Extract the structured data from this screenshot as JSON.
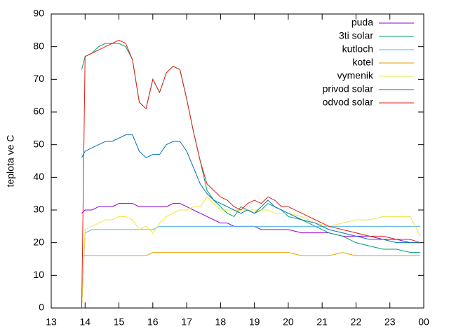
{
  "chart_data": {
    "type": "line",
    "ylabel": "teplota ve C",
    "x": [
      13.9,
      14.0,
      14.2,
      14.4,
      14.6,
      14.8,
      15.0,
      15.2,
      15.4,
      15.6,
      15.8,
      16.0,
      16.2,
      16.4,
      16.6,
      16.8,
      17.0,
      17.2,
      17.4,
      17.6,
      17.8,
      18.0,
      18.2,
      18.4,
      18.6,
      18.8,
      19.0,
      19.2,
      19.4,
      19.6,
      19.8,
      20.0,
      20.4,
      20.8,
      21.2,
      21.6,
      22.0,
      22.4,
      22.8,
      23.2,
      23.6,
      23.9
    ],
    "xlim": [
      13,
      24
    ],
    "xticks": [
      13,
      14,
      15,
      16,
      17,
      18,
      19,
      20,
      21,
      22,
      23,
      {
        "value": 24,
        "label": "00"
      }
    ],
    "ylim": [
      0,
      90
    ],
    "yticks": [
      0,
      10,
      20,
      30,
      40,
      50,
      60,
      70,
      80,
      90
    ],
    "legend": "top-right",
    "series": [
      {
        "name": "puda",
        "color": "#9400d3",
        "values": [
          29,
          30,
          30,
          31,
          31,
          31,
          32,
          32,
          32,
          31,
          31,
          31,
          31,
          31,
          32,
          32,
          31,
          30,
          29,
          28,
          27,
          26,
          26,
          25,
          25,
          25,
          25,
          24,
          24,
          24,
          24,
          24,
          23,
          23,
          23,
          22,
          22,
          22,
          21,
          21,
          20,
          20
        ]
      },
      {
        "name": "3ti solar",
        "color": "#009e73",
        "values": [
          73,
          77,
          78,
          80,
          81,
          81,
          81,
          80,
          76,
          63,
          61,
          70,
          66,
          72,
          74,
          73,
          64,
          54,
          45,
          36,
          33,
          31,
          29,
          28,
          31,
          30,
          29,
          30,
          32,
          31,
          30,
          28,
          27,
          25,
          23,
          22,
          20,
          19,
          18,
          18,
          17,
          17
        ]
      },
      {
        "name": "kutloch",
        "color": "#56b4e9",
        "values": [
          0,
          23,
          24,
          24,
          24,
          24,
          24,
          24,
          24,
          24,
          24,
          24,
          25,
          25,
          25,
          25,
          25,
          25,
          25,
          25,
          25,
          25,
          25,
          25,
          25,
          25,
          25,
          25,
          25,
          25,
          25,
          25,
          25,
          25,
          25,
          25,
          25,
          25,
          25,
          25,
          25,
          25
        ]
      },
      {
        "name": "kotel",
        "color": "#e69f00",
        "values": [
          16,
          16,
          16,
          16,
          16,
          16,
          16,
          16,
          16,
          16,
          16,
          17,
          17,
          17,
          17,
          17,
          17,
          17,
          17,
          17,
          17,
          17,
          17,
          17,
          17,
          17,
          17,
          17,
          17,
          17,
          17,
          17,
          16,
          16,
          16,
          17,
          16,
          16,
          16,
          16,
          16,
          16
        ]
      },
      {
        "name": "vymenik",
        "color": "#f0e442",
        "values": [
          0,
          24,
          25,
          26,
          27,
          27,
          28,
          28,
          27,
          24,
          25,
          23,
          26,
          28,
          29,
          30,
          30,
          31,
          31,
          34,
          32,
          30,
          30,
          30,
          30,
          30,
          30,
          30,
          30,
          29,
          29,
          29,
          28,
          26,
          25,
          26,
          27,
          27,
          28,
          28,
          28,
          22
        ]
      },
      {
        "name": "privod solar",
        "color": "#0072b2",
        "values": [
          46,
          48,
          49,
          50,
          51,
          51,
          52,
          53,
          53,
          48,
          46,
          47,
          47,
          50,
          51,
          51,
          48,
          43,
          38,
          35,
          33,
          32,
          31,
          30,
          29,
          30,
          29,
          31,
          33,
          31,
          30,
          29,
          27,
          26,
          24,
          23,
          22,
          21,
          21,
          20,
          20,
          20
        ]
      },
      {
        "name": "odvod solar",
        "color": "#e51e10",
        "values": [
          0,
          77,
          78,
          79,
          80,
          81,
          82,
          81,
          76,
          63,
          61,
          70,
          66,
          72,
          74,
          73,
          64,
          54,
          45,
          38,
          36,
          34,
          33,
          31,
          30,
          32,
          33,
          32,
          34,
          33,
          31,
          31,
          29,
          27,
          25,
          24,
          23,
          22,
          22,
          21,
          21,
          20
        ]
      }
    ]
  }
}
